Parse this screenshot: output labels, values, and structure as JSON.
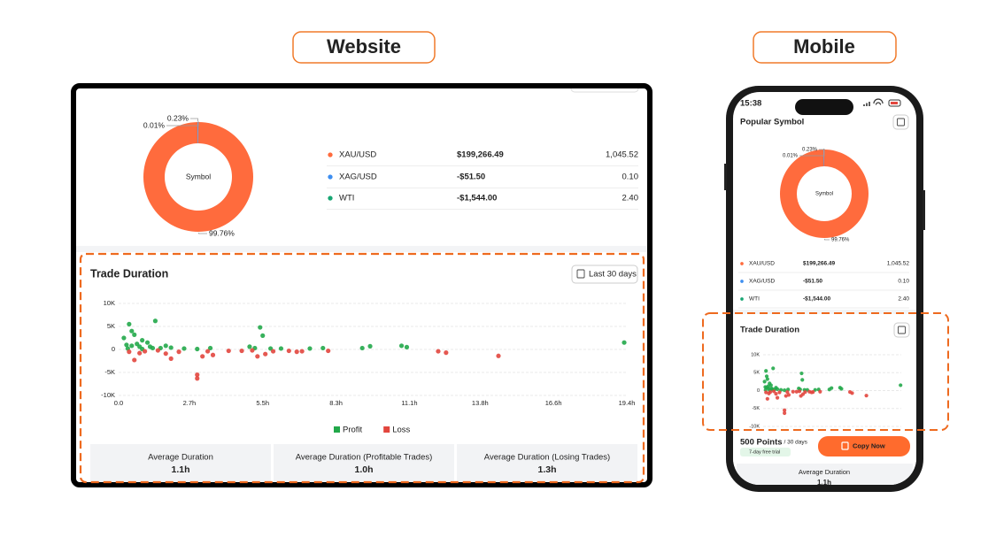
{
  "labels": {
    "website": "Website",
    "mobile": "Mobile"
  },
  "status_bar": {
    "time": "15:38"
  },
  "popular_symbol": {
    "title": "Popular Symbol"
  },
  "symbols": {
    "rows": [
      [
        "XAU/USD",
        "$199,266.49",
        "1,045.52"
      ],
      [
        "XAG/USD",
        "-$51.50",
        "0.10"
      ],
      [
        "WTI",
        "-$1,544.00",
        "2.40"
      ]
    ]
  },
  "filter": {
    "label": "Last 30 days"
  },
  "stats": [
    {
      "label": "Average Duration",
      "value": "1.1h"
    },
    {
      "label": "Average Duration (Profitable Trades)",
      "value": "1.0h"
    },
    {
      "label": "Average Duration (Losing Trades)",
      "value": "1.3h"
    }
  ],
  "promo": {
    "points": "500 Points",
    "period": "/ 30 days",
    "trial": "7-day free trial",
    "button": "Copy Now"
  },
  "chart_data": [
    {
      "type": "pie",
      "center_label": "Symbol",
      "values": [
        99.76,
        0.23,
        0.01
      ],
      "value_labels": [
        "99.76%",
        "0.23%",
        "0.01%"
      ],
      "colors": [
        "#ff6b3d",
        "#3d8ef0",
        "#17a673"
      ]
    },
    {
      "type": "scatter",
      "title": "Trade Duration",
      "xlim": [
        0,
        19.4
      ],
      "ylim": [
        -10000,
        10000
      ],
      "xticks": [
        {
          "value": 0,
          "label": "0.0"
        },
        {
          "value": 2.7,
          "label": "2.7h"
        },
        {
          "value": 5.5,
          "label": "5.5h"
        },
        {
          "value": 8.3,
          "label": "8.3h"
        },
        {
          "value": 11.1,
          "label": "11.1h"
        },
        {
          "value": 13.8,
          "label": "13.8h"
        },
        {
          "value": 16.6,
          "label": "16.6h"
        },
        {
          "value": 19.4,
          "label": "19.4h"
        }
      ],
      "yticks": [
        {
          "value": 10000,
          "label": "10K"
        },
        {
          "value": 5000,
          "label": "5K"
        },
        0,
        {
          "value": -5000,
          "label": "-5K"
        },
        {
          "value": -10000,
          "label": "-10K"
        }
      ],
      "grid": true,
      "legend": "bottom",
      "series": [
        {
          "name": "Profit",
          "color": "#22a84a",
          "x": [
            0.4,
            1.4,
            0.5,
            0.6,
            0.9,
            1.1,
            0.3,
            0.5,
            0.7,
            1.3,
            1.8,
            2.5,
            3.5,
            5.4,
            5.5,
            5.0,
            5.2,
            6.2,
            7.8,
            9.3,
            9.6,
            10.8,
            11.0,
            19.3,
            0.2,
            0.8,
            1.6,
            2.0,
            0.35,
            0.9,
            1.2,
            3.0,
            5.8,
            7.3
          ],
          "values": [
            5500,
            6200,
            4000,
            3200,
            2000,
            1500,
            1000,
            800,
            1200,
            300,
            800,
            200,
            300,
            4800,
            3000,
            600,
            300,
            200,
            300,
            300,
            700,
            800,
            500,
            1500,
            2500,
            600,
            300,
            400,
            200,
            100,
            600,
            100,
            200,
            200
          ]
        },
        {
          "name": "Loss",
          "color": "#e2463e",
          "x": [
            0.6,
            2.0,
            3.0,
            3.0,
            3.2,
            0.8,
            1.0,
            1.5,
            2.3,
            3.4,
            3.6,
            4.2,
            4.7,
            5.3,
            5.6,
            5.9,
            6.5,
            7.0,
            8.0,
            12.2,
            12.5,
            14.5,
            0.4,
            1.8,
            5.1,
            6.8
          ],
          "values": [
            -2300,
            -2000,
            -5500,
            -6300,
            -1500,
            -800,
            -400,
            -200,
            -500,
            -400,
            -1200,
            -300,
            -300,
            -1500,
            -1000,
            -400,
            -300,
            -400,
            -300,
            -400,
            -700,
            -1400,
            -500,
            -900,
            -200,
            -500
          ]
        }
      ]
    }
  ]
}
